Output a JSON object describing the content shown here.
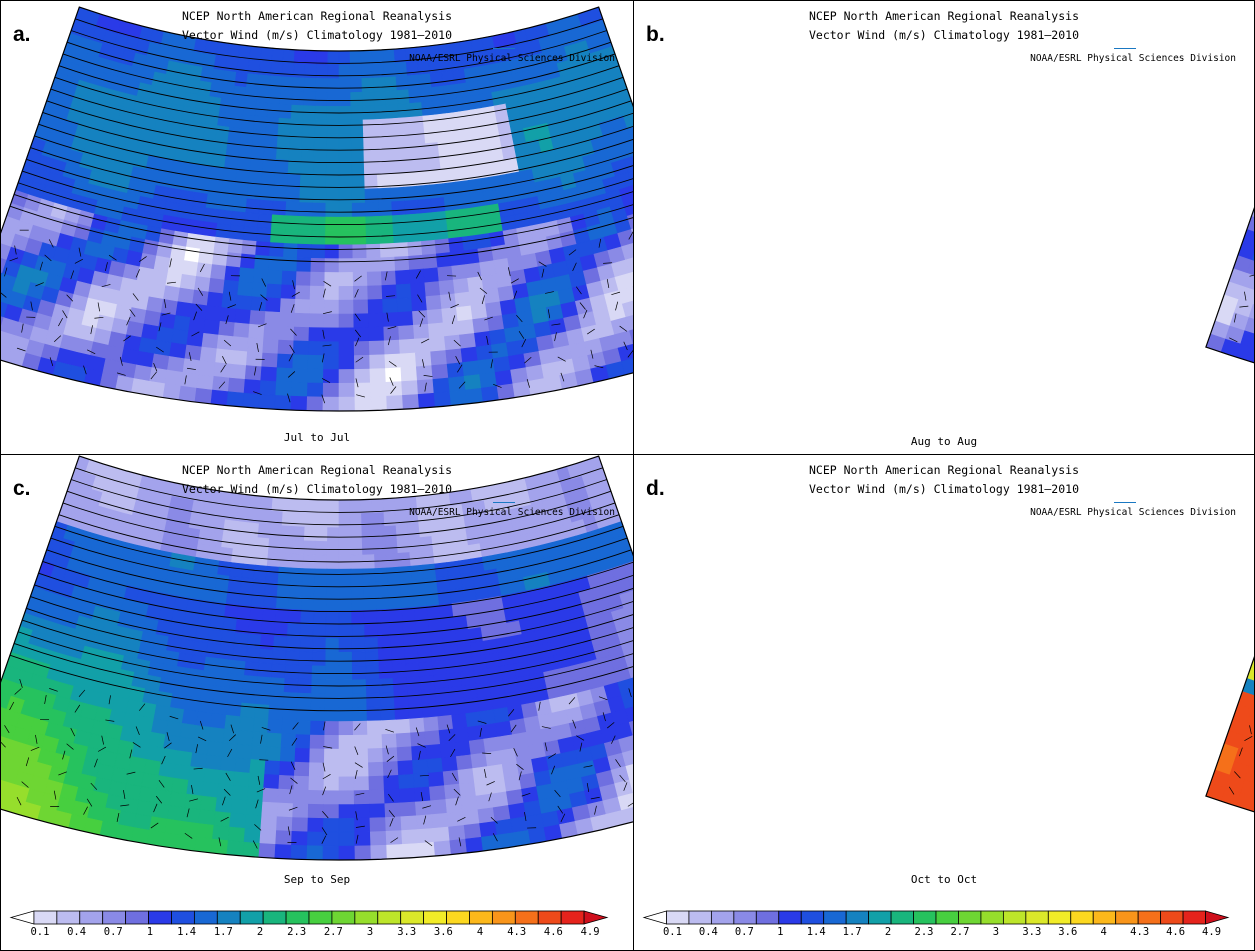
{
  "figure": {
    "panels": [
      {
        "letter": "a.",
        "title_line1": "NCEP North American Regional Reanalysis",
        "title_line2": "Vector Wind (m/s) Climatology 1981–2010",
        "credit": "NOAA/ESRL Physical Sciences Division",
        "period": "Jul to Jul"
      },
      {
        "letter": "b.",
        "title_line1": "NCEP North American Regional Reanalysis",
        "title_line2": "Vector Wind (m/s) Climatology 1981–2010",
        "credit": "NOAA/ESRL Physical Sciences Division",
        "period": "Aug to Aug"
      },
      {
        "letter": "c.",
        "title_line1": "NCEP North American Regional Reanalysis",
        "title_line2": "Vector Wind (m/s) Climatology 1981–2010",
        "credit": "NOAA/ESRL Physical Sciences Division",
        "period": "Sep to Sep"
      },
      {
        "letter": "d.",
        "title_line1": "NCEP North American Regional Reanalysis",
        "title_line2": "Vector Wind (m/s) Climatology 1981–2010",
        "credit": "NOAA/ESRL Physical Sciences Division",
        "period": "Oct to Oct"
      }
    ],
    "colorbar": {
      "ticks": [
        "0.1",
        "0.4",
        "0.7",
        "1",
        "1.4",
        "1.7",
        "2",
        "2.3",
        "2.7",
        "3",
        "3.3",
        "3.6",
        "4",
        "4.3",
        "4.6",
        "4.9"
      ],
      "colors": [
        "#ffffff",
        "#d9d9f5",
        "#bcbcf0",
        "#a3a3ec",
        "#8a8ae6",
        "#6f6fe0",
        "#2a3ae8",
        "#1f4fe0",
        "#1868d4",
        "#1582c0",
        "#12a0a8",
        "#19b57d",
        "#26c25e",
        "#47cf3f",
        "#6ed633",
        "#96de2c",
        "#bde52a",
        "#dbe82a",
        "#f2ec28",
        "#fcd820",
        "#fcb81b",
        "#f9951a",
        "#f5701a",
        "#ee4a1a",
        "#e5231c",
        "#cf0f1c"
      ]
    }
  }
}
